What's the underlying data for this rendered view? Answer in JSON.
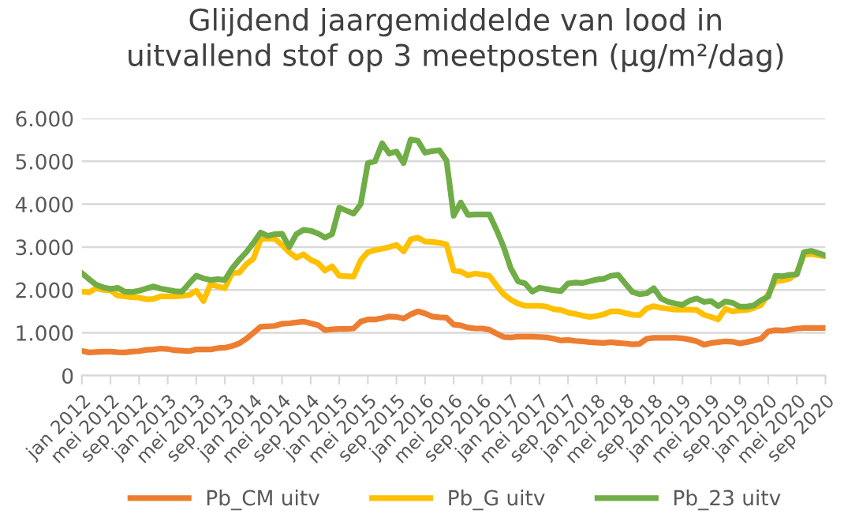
{
  "chart_data": {
    "type": "line",
    "title": "Glijdend jaargemiddelde van lood in\nuitvallend stof op 3 meetposten (µg/m²/dag)",
    "categories": [
      "jan 2012",
      null,
      null,
      null,
      "mei 2012",
      null,
      null,
      null,
      "sep 2012",
      null,
      null,
      null,
      "jan 2013",
      null,
      null,
      null,
      "mei 2013",
      null,
      null,
      null,
      "sep 2013",
      null,
      null,
      null,
      "jan 2014",
      null,
      null,
      null,
      "mei 2014",
      null,
      null,
      null,
      "sep 2014",
      null,
      null,
      null,
      "jan 2015",
      null,
      null,
      null,
      "mei 2015",
      null,
      null,
      null,
      "sep 2015",
      null,
      null,
      null,
      "jan 2016",
      null,
      null,
      null,
      "mei 2016",
      null,
      null,
      null,
      "sep 2016",
      null,
      null,
      null,
      "jan 2017",
      null,
      null,
      null,
      "mei 2017",
      null,
      null,
      null,
      "sep 2017",
      null,
      null,
      null,
      "jan 2018",
      null,
      null,
      null,
      "mei 2018",
      null,
      null,
      null,
      "sep 2018",
      null,
      null,
      null,
      "jan 2019",
      null,
      null,
      null,
      "mei 2019",
      null,
      null,
      null,
      "sep 2019",
      null,
      null,
      null,
      "jan 2020",
      null,
      null,
      null,
      "mei 2020",
      null,
      null,
      null,
      "sep 2020"
    ],
    "series": [
      {
        "name": "Pb_CM uitv",
        "color": "#ed7d31",
        "values": [
          575,
          540,
          550,
          560,
          560,
          545,
          540,
          560,
          570,
          600,
          610,
          630,
          620,
          590,
          580,
          570,
          610,
          610,
          610,
          640,
          650,
          690,
          750,
          860,
          1000,
          1140,
          1150,
          1160,
          1210,
          1220,
          1240,
          1260,
          1220,
          1180,
          1060,
          1080,
          1090,
          1090,
          1100,
          1260,
          1310,
          1310,
          1340,
          1380,
          1370,
          1330,
          1430,
          1500,
          1450,
          1380,
          1360,
          1350,
          1190,
          1170,
          1120,
          1100,
          1100,
          1070,
          980,
          900,
          890,
          910,
          910,
          910,
          900,
          890,
          860,
          820,
          830,
          810,
          800,
          780,
          770,
          760,
          780,
          760,
          750,
          730,
          740,
          860,
          880,
          880,
          880,
          880,
          870,
          840,
          800,
          720,
          760,
          780,
          800,
          790,
          750,
          780,
          820,
          860,
          1030,
          1060,
          1050,
          1070,
          1100,
          1110,
          1110,
          1110,
          1110
        ]
      },
      {
        "name": "Pb_G uitv",
        "color": "#ffc000",
        "values": [
          1960,
          1940,
          2040,
          2000,
          1990,
          1870,
          1850,
          1830,
          1820,
          1780,
          1790,
          1850,
          1850,
          1850,
          1860,
          1880,
          1980,
          1740,
          2140,
          2080,
          2040,
          2390,
          2400,
          2600,
          2730,
          3180,
          3200,
          3190,
          3050,
          2880,
          2750,
          2830,
          2700,
          2630,
          2450,
          2550,
          2330,
          2320,
          2310,
          2690,
          2880,
          2930,
          2960,
          3000,
          3050,
          2900,
          3180,
          3220,
          3130,
          3120,
          3100,
          3060,
          2450,
          2430,
          2340,
          2380,
          2360,
          2330,
          2100,
          1900,
          1770,
          1680,
          1630,
          1630,
          1630,
          1610,
          1550,
          1530,
          1470,
          1440,
          1400,
          1370,
          1390,
          1430,
          1500,
          1500,
          1460,
          1420,
          1410,
          1570,
          1620,
          1580,
          1560,
          1540,
          1540,
          1540,
          1530,
          1420,
          1370,
          1310,
          1560,
          1500,
          1520,
          1530,
          1580,
          1650,
          1900,
          2200,
          2220,
          2260,
          2400,
          2820,
          2840,
          2810,
          2780
        ]
      },
      {
        "name": "Pb_23 uitv",
        "color": "#70ad47",
        "values": [
          2390,
          2250,
          2120,
          2060,
          2020,
          2050,
          1960,
          1950,
          1980,
          2030,
          2080,
          2030,
          2000,
          1970,
          1960,
          2150,
          2330,
          2270,
          2230,
          2250,
          2230,
          2500,
          2700,
          2880,
          3100,
          3340,
          3260,
          3300,
          3310,
          3000,
          3300,
          3400,
          3380,
          3320,
          3220,
          3300,
          3920,
          3850,
          3780,
          4000,
          4960,
          5000,
          5420,
          5180,
          5230,
          4960,
          5510,
          5480,
          5200,
          5240,
          5260,
          5020,
          3730,
          4040,
          3750,
          3760,
          3760,
          3760,
          3400,
          3000,
          2500,
          2200,
          2150,
          1960,
          2050,
          2020,
          1990,
          1970,
          2150,
          2170,
          2160,
          2200,
          2240,
          2260,
          2330,
          2350,
          2150,
          1950,
          1900,
          1920,
          2040,
          1800,
          1720,
          1680,
          1650,
          1750,
          1800,
          1720,
          1740,
          1620,
          1730,
          1700,
          1610,
          1610,
          1640,
          1760,
          1840,
          2330,
          2320,
          2350,
          2360,
          2880,
          2910,
          2860,
          2800
        ]
      }
    ],
    "ylim": [
      0,
      6000
    ],
    "yticks": [
      0,
      {
        "value": 1000,
        "label": "1.000"
      },
      {
        "value": 2000,
        "label": "2.000"
      },
      {
        "value": 3000,
        "label": "3.000"
      },
      {
        "value": 4000,
        "label": "4.000"
      },
      {
        "value": 5000,
        "label": "5.000"
      },
      {
        "value": 6000,
        "label": "6.000"
      }
    ],
    "grid": "y",
    "legend": "bottom",
    "marker": "none",
    "line_style": "solid"
  }
}
